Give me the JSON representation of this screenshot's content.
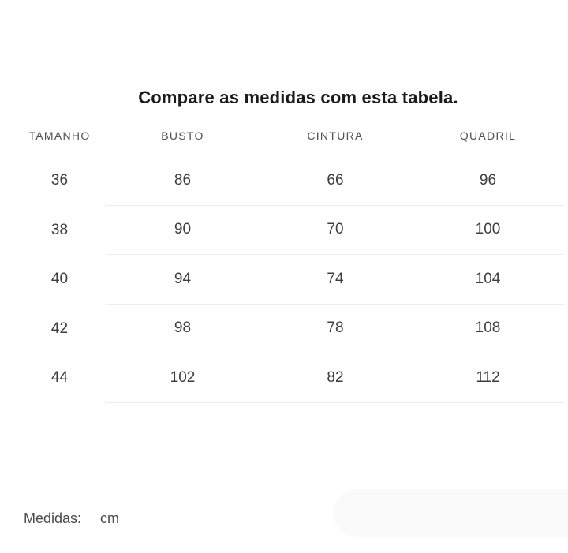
{
  "title": "Compare as medidas com esta tabela.",
  "table": {
    "headers": [
      "TAMANHO",
      "BUSTO",
      "CINTURA",
      "QUADRIL"
    ],
    "rows": [
      [
        "36",
        "86",
        "66",
        "96"
      ],
      [
        "38",
        "90",
        "70",
        "100"
      ],
      [
        "40",
        "94",
        "74",
        "104"
      ],
      [
        "42",
        "98",
        "78",
        "108"
      ],
      [
        "44",
        "102",
        "82",
        "112"
      ]
    ]
  },
  "footer": {
    "label": "Medidas:",
    "unit": "cm"
  },
  "colors": {
    "title_text": "#1a1a1a",
    "header_text": "#4f4f4f",
    "cell_text": "#3d3d3d",
    "divider": "#ededed",
    "pill_fill": "#fafafa",
    "background": "#ffffff"
  }
}
